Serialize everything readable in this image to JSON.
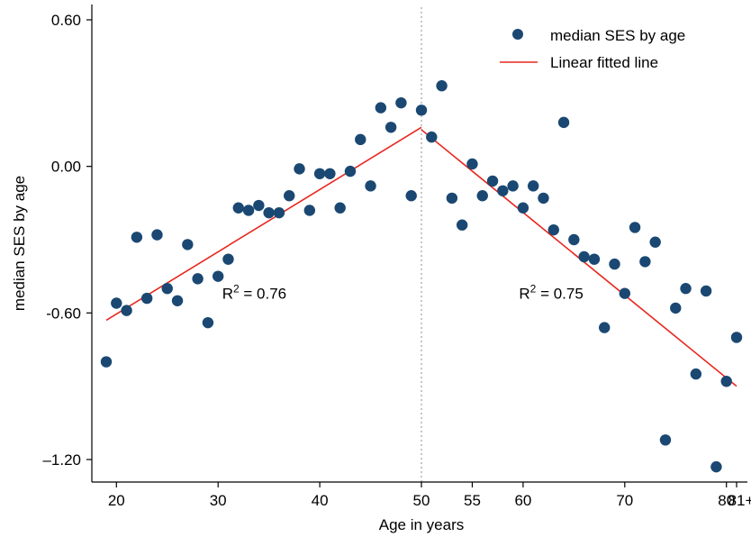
{
  "chart_data": {
    "type": "scatter",
    "xlabel": "Age in years",
    "ylabel": "median SES by age",
    "xlim": [
      19,
      81
    ],
    "ylim": [
      -1.27,
      0.66
    ],
    "x_ticks": [
      {
        "value": 20,
        "label": "20"
      },
      {
        "value": 30,
        "label": "30"
      },
      {
        "value": 40,
        "label": "40"
      },
      {
        "value": 50,
        "label": "50"
      },
      {
        "value": 55,
        "label": "55"
      },
      {
        "value": 60,
        "label": "60"
      },
      {
        "value": 70,
        "label": "70"
      },
      {
        "value": 80,
        "label": "80"
      },
      {
        "value": 81,
        "label": "81+"
      }
    ],
    "y_ticks": [
      {
        "value": 0.6,
        "label": "0.60"
      },
      {
        "value": 0.0,
        "label": "0.00"
      },
      {
        "value": -0.6,
        "label": "-0.60"
      },
      {
        "value": -1.2,
        "label": "–1.20"
      }
    ],
    "reference_line_x": 50,
    "legend": {
      "position": "top-right",
      "scatter_label": "median SES by age",
      "line_label": "Linear fitted line"
    },
    "colors": {
      "points": "#1a4872",
      "fit_line": "#e8271f",
      "reference_line": "#a0a0a0"
    },
    "series": [
      {
        "name": "median SES by age",
        "type": "scatter",
        "points": [
          [
            19,
            -0.8
          ],
          [
            20,
            -0.56
          ],
          [
            21,
            -0.59
          ],
          [
            22,
            -0.29
          ],
          [
            23,
            -0.54
          ],
          [
            24,
            -0.28
          ],
          [
            25,
            -0.5
          ],
          [
            26,
            -0.55
          ],
          [
            27,
            -0.32
          ],
          [
            28,
            -0.46
          ],
          [
            29,
            -0.64
          ],
          [
            30,
            -0.45
          ],
          [
            31,
            -0.38
          ],
          [
            32,
            -0.17
          ],
          [
            33,
            -0.18
          ],
          [
            34,
            -0.16
          ],
          [
            35,
            -0.19
          ],
          [
            36,
            -0.19
          ],
          [
            37,
            -0.12
          ],
          [
            38,
            -0.01
          ],
          [
            39,
            -0.18
          ],
          [
            40,
            -0.03
          ],
          [
            41,
            -0.03
          ],
          [
            42,
            -0.17
          ],
          [
            43,
            -0.02
          ],
          [
            44,
            0.11
          ],
          [
            45,
            -0.08
          ],
          [
            46,
            0.24
          ],
          [
            47,
            0.16
          ],
          [
            48,
            0.26
          ],
          [
            49,
            -0.12
          ],
          [
            50,
            0.23
          ],
          [
            51,
            0.12
          ],
          [
            52,
            0.33
          ],
          [
            53,
            -0.13
          ],
          [
            54,
            -0.24
          ],
          [
            55,
            0.01
          ],
          [
            56,
            -0.12
          ],
          [
            57,
            -0.06
          ],
          [
            58,
            -0.1
          ],
          [
            59,
            -0.08
          ],
          [
            60,
            -0.17
          ],
          [
            61,
            -0.08
          ],
          [
            62,
            -0.13
          ],
          [
            63,
            -0.26
          ],
          [
            64,
            0.18
          ],
          [
            65,
            -0.3
          ],
          [
            66,
            -0.37
          ],
          [
            67,
            -0.38
          ],
          [
            68,
            -0.66
          ],
          [
            69,
            -0.4
          ],
          [
            70,
            -0.52
          ],
          [
            71,
            -0.25
          ],
          [
            72,
            -0.39
          ],
          [
            73,
            -0.31
          ],
          [
            74,
            -1.12
          ],
          [
            75,
            -0.58
          ],
          [
            76,
            -0.5
          ],
          [
            77,
            -0.85
          ],
          [
            78,
            -0.51
          ],
          [
            79,
            -1.23
          ],
          [
            80,
            -0.88
          ],
          [
            81,
            -0.7
          ]
        ]
      },
      {
        "name": "Linear fitted line",
        "type": "line",
        "segments": [
          [
            [
              19,
              -0.63
            ],
            [
              50,
              0.16
            ]
          ],
          [
            [
              50,
              0.15
            ],
            [
              81,
              -0.9
            ]
          ]
        ]
      }
    ],
    "annotations": [
      {
        "text": "R",
        "sup": "2",
        "rest": " = 0.76",
        "x": 30.4,
        "y": -0.52
      },
      {
        "text": "R",
        "sup": "2",
        "rest": " = 0.75",
        "x": 59.6,
        "y": -0.52
      }
    ]
  }
}
